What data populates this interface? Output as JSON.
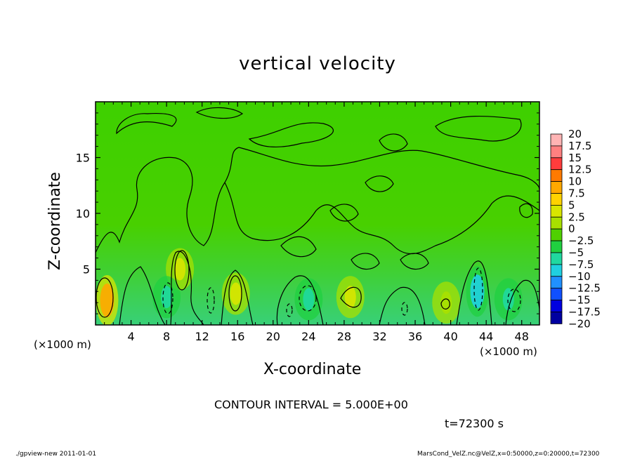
{
  "chart_data": {
    "type": "heatmap",
    "title": "vertical velocity",
    "xlabel": "X-coordinate",
    "ylabel": "Z-coordinate",
    "x_unit": "(×1000 m)",
    "x_ticks": [
      4,
      8,
      12,
      16,
      20,
      24,
      28,
      32,
      36,
      40,
      44,
      48
    ],
    "y_ticks": [
      5,
      10,
      15
    ],
    "xlim": [
      0,
      50
    ],
    "ylim": [
      0,
      20
    ],
    "contour_interval": "CONTOUR INTERVAL = 5.000E+00",
    "time_label": "t=72300 s",
    "colorbar": {
      "levels": [
        "20",
        "17.5",
        "15",
        "12.5",
        "10",
        "7.5",
        "5",
        "2.5",
        "0",
        "−2.5",
        "−5",
        "−7.5",
        "−10",
        "−12.5",
        "−15",
        "−17.5",
        "−20"
      ],
      "colors": [
        "#ffb4b4",
        "#ff8080",
        "#ff3c3c",
        "#ff7a00",
        "#ffa800",
        "#ffd200",
        "#d8e600",
        "#a8e000",
        "#4fd000",
        "#20d040",
        "#20d8a0",
        "#20d0e0",
        "#2090ff",
        "#1050ff",
        "#0000e0",
        "#0000a0",
        "#7a00c8"
      ]
    },
    "features": [
      {
        "x": 1.3,
        "z": 2.2,
        "value": 10,
        "kind": "updraft"
      },
      {
        "x": 9.5,
        "z": 5.0,
        "value": 5,
        "kind": "updraft"
      },
      {
        "x": 15.8,
        "z": 2.8,
        "value": 5,
        "kind": "updraft"
      },
      {
        "x": 28.7,
        "z": 2.5,
        "value": 5,
        "kind": "updraft"
      },
      {
        "x": 39.5,
        "z": 2.0,
        "value": 2.5,
        "kind": "updraft"
      },
      {
        "x": 8.0,
        "z": 2.5,
        "value": -5,
        "kind": "downdraft"
      },
      {
        "x": 24.0,
        "z": 2.3,
        "value": -5,
        "kind": "downdraft"
      },
      {
        "x": 43.0,
        "z": 3.0,
        "value": -7.5,
        "kind": "downdraft"
      },
      {
        "x": 46.5,
        "z": 2.3,
        "value": -5,
        "kind": "downdraft"
      }
    ]
  },
  "footer": {
    "left": "./gpview-new  2011-01-01",
    "right": "MarsCond_VelZ.nc@VelZ,x=0:50000,z=0:20000,t=72300"
  }
}
